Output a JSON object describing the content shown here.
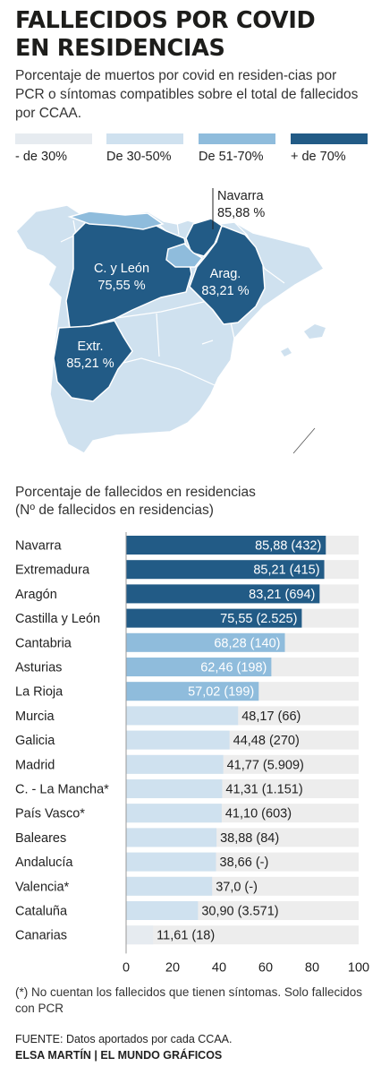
{
  "header": {
    "title_line1": "FALLECIDOS POR COVID",
    "title_line2": "EN RESIDENCIAS",
    "subtitle": "Porcentaje de muertos por covid en residen-cias por PCR o síntomas compatibles sobre el total de fallecidos por CCAA."
  },
  "legend": [
    {
      "label": "- de 30%",
      "color": "#e6ebf0"
    },
    {
      "label": "De 30-50%",
      "color": "#cfe1ef"
    },
    {
      "label": "De 51-70%",
      "color": "#8fbcdc"
    },
    {
      "label": "+ de 70%",
      "color": "#225b86"
    }
  ],
  "map": {
    "labels": {
      "navarra_name": "Navarra",
      "navarra_value": "85,88 %",
      "cyl_name": "C. y León",
      "cyl_value": "75,55 %",
      "aragon_name": "Arag.",
      "aragon_value": "83,21 %",
      "extremadura_name": "Extr.",
      "extremadura_value": "85,21 %"
    }
  },
  "bar_section": {
    "title_line1": "Porcentaje de fallecidos en residencias",
    "title_line2": "(Nº de fallecidos en residencias)"
  },
  "colors": {
    "track": "#ededed",
    "lightest": "#e6ebf0",
    "light": "#cfe1ef",
    "medium": "#8fbcdc",
    "dark": "#225b86"
  },
  "chart_data": {
    "type": "bar",
    "orientation": "horizontal",
    "categories": [
      "Navarra",
      "Extremadura",
      "Aragón",
      "Castilla y León",
      "Cantabria",
      "Asturias",
      "La Rioja",
      "Murcia",
      "Galicia",
      "Madrid",
      "C. - La Mancha*",
      "País Vasco*",
      "Baleares",
      "Andalucía",
      "Valencia*",
      "Cataluña",
      "Canarias"
    ],
    "values": [
      85.88,
      85.21,
      83.21,
      75.55,
      68.28,
      62.46,
      57.02,
      48.17,
      44.48,
      41.77,
      41.31,
      41.1,
      38.88,
      38.66,
      37.0,
      30.9,
      11.61
    ],
    "data_labels": [
      "85,88 (432)",
      "85,21 (415)",
      "83,21 (694)",
      "75,55 (2.525)",
      "68,28 (140)",
      "62,46 (198)",
      "57,02 (199)",
      "48,17 (66)",
      "44,48 (270)",
      "41,77 (5.909)",
      "41,31 (1.151)",
      "41,10 (603)",
      "38,88 (84)",
      "38,66 (-)",
      "37,0 (-)",
      "30,90 (3.571)",
      "11,61 (18)"
    ],
    "xlim": [
      0,
      100
    ],
    "xticks": [
      "0",
      "20",
      "40",
      "60",
      "80",
      "100"
    ],
    "tick_values": [
      0,
      20,
      40,
      60,
      80,
      100
    ]
  },
  "footer": {
    "footnote": "(*) No cuentan los fallecidos que tienen síntomas. Solo fallecidos con PCR",
    "source": "FUENTE: Datos aportados por cada CCAA.",
    "credit": "ELSA MARTÍN | EL MUNDO GRÁFICOS"
  }
}
